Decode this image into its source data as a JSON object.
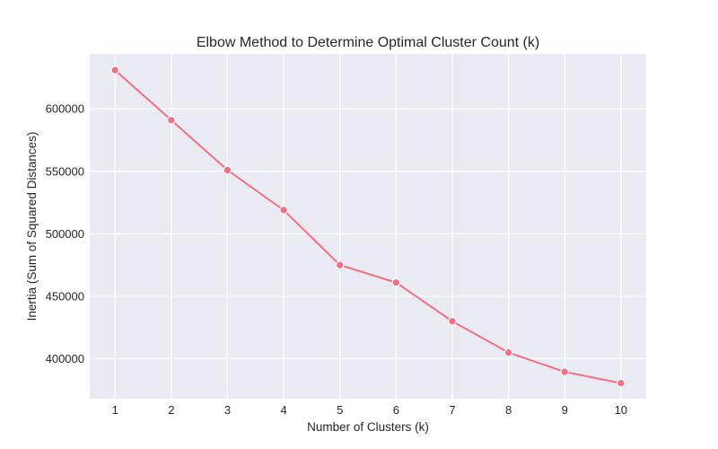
{
  "chart_data": {
    "type": "line",
    "title": "Elbow Method to Determine Optimal Cluster Count (k)",
    "xlabel": "Number of Clusters (k)",
    "ylabel": "Inertia (Sum of Squared Distances)",
    "x": [
      1,
      2,
      3,
      4,
      5,
      6,
      7,
      8,
      9,
      10
    ],
    "series": [
      {
        "values": [
          631000,
          591000,
          551000,
          519000,
          475000,
          461000,
          430000,
          405000,
          389500,
          380500
        ],
        "color": "#f07183",
        "marker": "circle"
      }
    ],
    "xlim": [
      0.55,
      10.45
    ],
    "ylim": [
      368000,
      644000
    ],
    "yticks": [
      400000,
      450000,
      500000,
      550000,
      600000
    ],
    "ytick_labels": [
      "400000",
      "450000",
      "500000",
      "550000",
      "600000"
    ],
    "xticks": [
      1,
      2,
      3,
      4,
      5,
      6,
      7,
      8,
      9,
      10
    ],
    "xtick_labels": [
      "1",
      "2",
      "3",
      "4",
      "5",
      "6",
      "7",
      "8",
      "9",
      "10"
    ],
    "grid": true,
    "background": "#eaeaf2",
    "grid_color": "#ffffff"
  }
}
